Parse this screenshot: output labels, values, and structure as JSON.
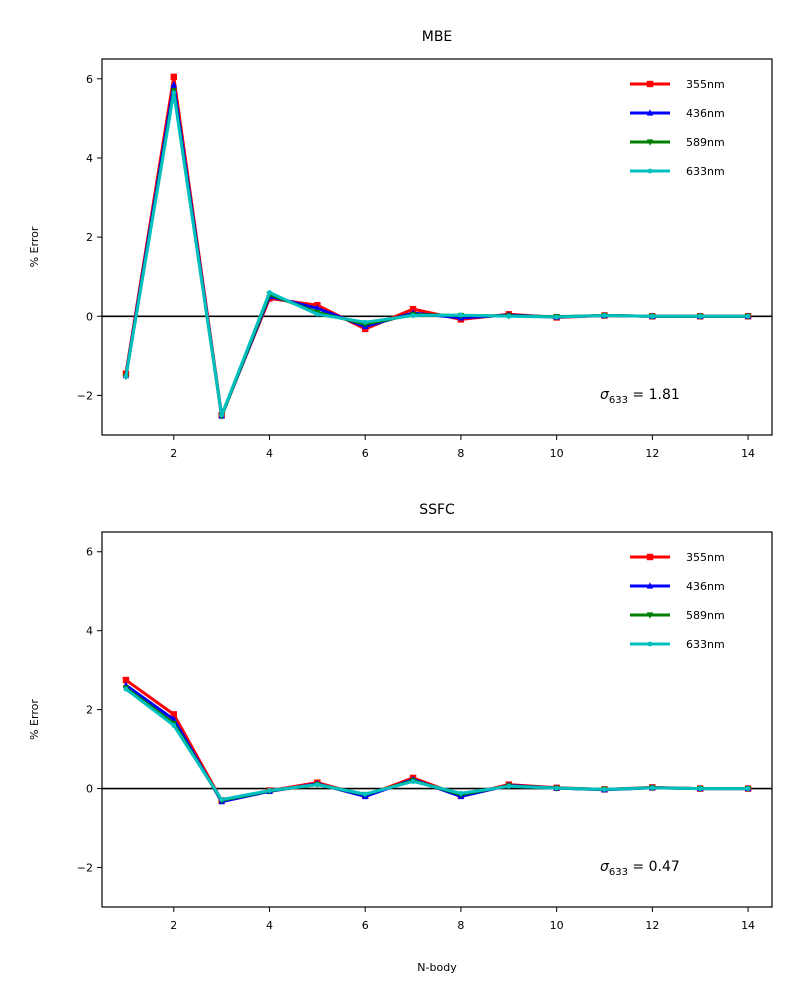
{
  "chart_data": [
    {
      "type": "line",
      "title": "MBE",
      "xlabel": "",
      "ylabel": "% Error",
      "xlim": [
        0.5,
        14.5
      ],
      "ylim": [
        -3,
        6.5
      ],
      "xticks": [
        2,
        4,
        6,
        8,
        10,
        12,
        14
      ],
      "yticks": [
        -2,
        0,
        2,
        4,
        6
      ],
      "ytick_labels": [
        "−2",
        "0",
        "2",
        "4",
        "6"
      ],
      "zero_line": true,
      "grid": false,
      "legend_position": "top-right",
      "x": [
        1,
        2,
        3,
        4,
        5,
        6,
        7,
        8,
        9,
        10,
        11,
        12,
        13,
        14
      ],
      "series": [
        {
          "name": "355nm",
          "color": "#ff0000",
          "marker": "square",
          "values": [
            -1.45,
            6.05,
            -2.5,
            0.45,
            0.28,
            -0.32,
            0.18,
            -0.08,
            0.05,
            -0.03,
            0.02,
            0.0,
            0.0,
            0.0
          ]
        },
        {
          "name": "436nm",
          "color": "#0000ff",
          "marker": "triangle-up",
          "values": [
            -1.5,
            5.85,
            -2.52,
            0.5,
            0.2,
            -0.26,
            0.08,
            -0.04,
            0.03,
            -0.02,
            0.02,
            0.0,
            0.0,
            0.0
          ]
        },
        {
          "name": "589nm",
          "color": "#008000",
          "marker": "triangle-down",
          "values": [
            -1.52,
            5.7,
            -2.52,
            0.55,
            0.1,
            -0.2,
            0.04,
            0.02,
            0.01,
            -0.01,
            0.02,
            0.0,
            0.0,
            0.0
          ]
        },
        {
          "name": "633nm",
          "color": "#00bfbf",
          "marker": "circle",
          "values": [
            -1.52,
            5.65,
            -2.5,
            0.6,
            0.05,
            -0.15,
            0.02,
            0.03,
            0.0,
            -0.02,
            0.02,
            0.0,
            0.0,
            0.0
          ]
        }
      ],
      "annotation_symbol": "σ",
      "annotation_subscript": "633",
      "annotation_value": " = 1.81"
    },
    {
      "type": "line",
      "title": "SSFC",
      "xlabel": "N-body",
      "ylabel": "% Error",
      "xlim": [
        0.5,
        14.5
      ],
      "ylim": [
        -3,
        6.5
      ],
      "xticks": [
        2,
        4,
        6,
        8,
        10,
        12,
        14
      ],
      "yticks": [
        -2,
        0,
        2,
        4,
        6
      ],
      "ytick_labels": [
        "−2",
        "0",
        "2",
        "4",
        "6"
      ],
      "zero_line": true,
      "grid": false,
      "legend_position": "top-right",
      "x": [
        1,
        2,
        3,
        4,
        5,
        6,
        7,
        8,
        9,
        10,
        11,
        12,
        13,
        14
      ],
      "series": [
        {
          "name": "355nm",
          "color": "#ff0000",
          "marker": "square",
          "values": [
            2.75,
            1.88,
            -0.3,
            -0.05,
            0.15,
            -0.18,
            0.27,
            -0.18,
            0.1,
            0.02,
            -0.02,
            0.03,
            0.0,
            0.0
          ]
        },
        {
          "name": "436nm",
          "color": "#0000ff",
          "marker": "triangle-up",
          "values": [
            2.62,
            1.75,
            -0.33,
            -0.07,
            0.12,
            -0.2,
            0.23,
            -0.2,
            0.08,
            0.01,
            -0.03,
            0.02,
            0.0,
            0.0
          ]
        },
        {
          "name": "589nm",
          "color": "#008000",
          "marker": "triangle-down",
          "values": [
            2.55,
            1.65,
            -0.3,
            -0.06,
            0.1,
            -0.15,
            0.2,
            -0.15,
            0.07,
            0.01,
            -0.02,
            0.02,
            0.0,
            0.0
          ]
        },
        {
          "name": "633nm",
          "color": "#00bfbf",
          "marker": "circle",
          "values": [
            2.52,
            1.6,
            -0.28,
            -0.05,
            0.1,
            -0.14,
            0.18,
            -0.12,
            0.06,
            0.01,
            -0.02,
            0.02,
            0.0,
            0.0
          ]
        }
      ],
      "annotation_symbol": "σ",
      "annotation_subscript": "633",
      "annotation_value": " = 0.47"
    }
  ]
}
